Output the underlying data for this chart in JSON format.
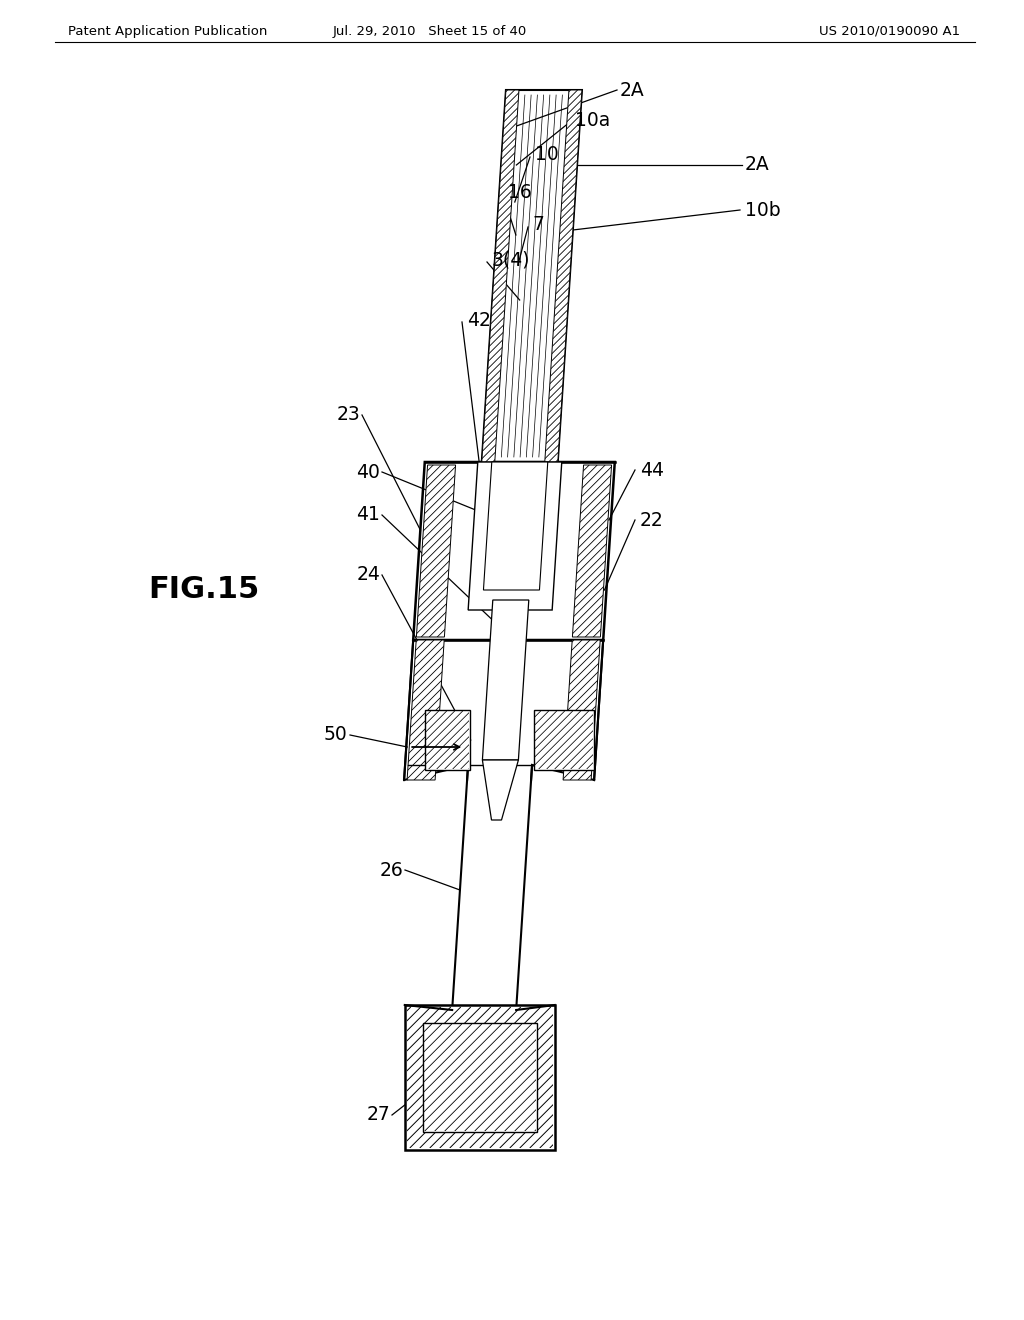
{
  "header_left": "Patent Application Publication",
  "header_mid": "Jul. 29, 2010   Sheet 15 of 40",
  "header_right": "US 2010/0190090 A1",
  "fig_label": "FIG.15",
  "bg_color": "#ffffff",
  "line_color": "#000000"
}
